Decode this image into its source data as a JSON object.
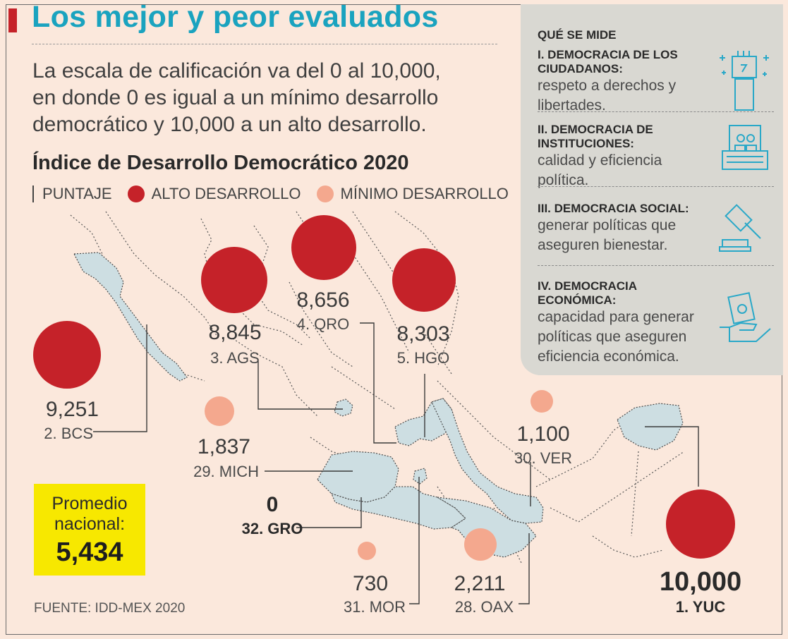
{
  "title": "Los mejor y peor evaluados",
  "intro": [
    "La escala de calificación va del 0 al 10,000,",
    "en donde 0 es igual a un mínimo desarrollo",
    "democrático y 10,000 a un alto desarrollo."
  ],
  "index_title": "Índice de Desarrollo Democrático 2020",
  "legend": {
    "score": "PUNTAJE",
    "high": "ALTO DESARROLLO",
    "low": "MÍNIMO DESARROLLO",
    "high_color": "#c52229",
    "low_color": "#f4a88e"
  },
  "states": [
    {
      "rank_label": "1. YUC",
      "score": "10,000",
      "category": "high"
    },
    {
      "rank_label": "2. BCS",
      "score": "9,251",
      "category": "high"
    },
    {
      "rank_label": "3. AGS",
      "score": "8,845",
      "category": "high"
    },
    {
      "rank_label": "4. QRO",
      "score": "8,656",
      "category": "high"
    },
    {
      "rank_label": "5. HGO",
      "score": "8,303",
      "category": "high"
    },
    {
      "rank_label": "28. OAX",
      "score": "2,211",
      "category": "low"
    },
    {
      "rank_label": "29. MICH",
      "score": "1,837",
      "category": "low"
    },
    {
      "rank_label": "30. VER",
      "score": "1,100",
      "category": "low"
    },
    {
      "rank_label": "31. MOR",
      "score": "730",
      "category": "low"
    },
    {
      "rank_label": "32. GRO",
      "score": "0",
      "category": "low"
    }
  ],
  "promedio": {
    "label": "Promedio\nnacional:",
    "value": "5,434"
  },
  "source": "FUENTE: IDD-MEX 2020",
  "panel": {
    "heading": "QUÉ SE MIDE",
    "items": [
      {
        "head": "I. DEMOCRACIA DE LOS CIUDADANOS:",
        "text": "respeto a derechos y libertades.",
        "icon": "raised-fist-icon"
      },
      {
        "head": "II. DEMOCRACIA DE INSTITUCIONES:",
        "text": "calidad y eficiencia política.",
        "icon": "institution-icon"
      },
      {
        "head": "III. DEMOCRACIA SOCIAL:",
        "text": "generar políticas que aseguren bienestar.",
        "icon": "gavel-icon"
      },
      {
        "head": "IV. DEMOCRACIA ECONÓMICA:",
        "text": "capacidad para generar políticas que aseguren eficiencia económica.",
        "icon": "money-hand-icon"
      }
    ],
    "icon_color": "#29a8c8"
  }
}
